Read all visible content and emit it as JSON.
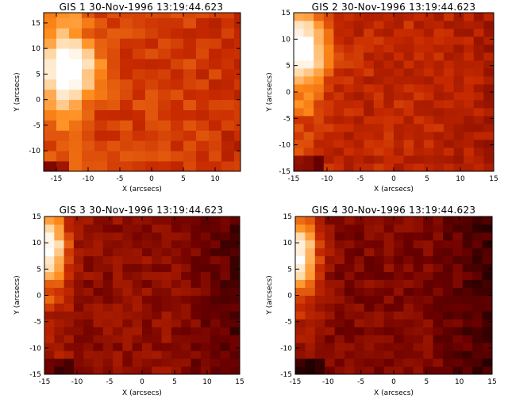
{
  "colormap": [
    "#000000",
    "#6e0000",
    "#c82a00",
    "#ff8c1a",
    "#ffd9a8",
    "#ffffff"
  ],
  "chart_data": [
    {
      "type": "heatmap",
      "title": "GIS 1 30-Nov-1996 13:19:44.623",
      "xlabel": "X (arcsecs)",
      "ylabel": "Y (arcsecs)",
      "xlim": [
        -17,
        14
      ],
      "ylim": [
        -14,
        17
      ],
      "xticks": [
        -15,
        -10,
        -5,
        0,
        5,
        10
      ],
      "yticks": [
        -10,
        -5,
        0,
        5,
        10,
        15
      ],
      "intensity_scale": "0 = black ... 1 = white",
      "hotspot": {
        "x": -13.5,
        "y": 6
      },
      "cell_size": 2
    },
    {
      "type": "heatmap",
      "title": "GIS 2 30-Nov-1996 13:19:44.623",
      "xlabel": "X (arcsecs)",
      "ylabel": "Y (arcsecs)",
      "xlim": [
        -15,
        15
      ],
      "ylim": [
        -15,
        15
      ],
      "xticks": [
        -15,
        -10,
        -5,
        0,
        5,
        10,
        15
      ],
      "yticks": [
        -15,
        -10,
        -5,
        0,
        5,
        10,
        15
      ],
      "intensity_scale": "0 = black ... 1 = white",
      "hotspot": {
        "x": -14,
        "y": 8
      },
      "cell_size": 1.5
    },
    {
      "type": "heatmap",
      "title": "GIS 3 30-Nov-1996 13:19:44.623",
      "xlabel": "X (arcsecs)",
      "ylabel": "Y (arcsecs)",
      "xlim": [
        -15,
        15
      ],
      "ylim": [
        -15,
        15
      ],
      "xticks": [
        -15,
        -10,
        -5,
        0,
        5,
        10,
        15
      ],
      "yticks": [
        -15,
        -10,
        -5,
        0,
        5,
        10,
        15
      ],
      "intensity_scale": "0 = black ... 1 = white",
      "hotspot": {
        "x": -14.5,
        "y": 9
      },
      "cell_size": 1.5
    },
    {
      "type": "heatmap",
      "title": "GIS 4 30-Nov-1996 13:19:44.623",
      "xlabel": "X (arcsecs)",
      "ylabel": "Y (arcsecs)",
      "xlim": [
        -15,
        15
      ],
      "ylim": [
        -15,
        15
      ],
      "xticks": [
        -15,
        -10,
        -5,
        0,
        5,
        10,
        15
      ],
      "yticks": [
        -15,
        -10,
        -5,
        0,
        5,
        10,
        15
      ],
      "intensity_scale": "0 = black ... 1 = white",
      "hotspot": {
        "x": -14.5,
        "y": 7.5
      },
      "cell_size": 1.5
    }
  ]
}
